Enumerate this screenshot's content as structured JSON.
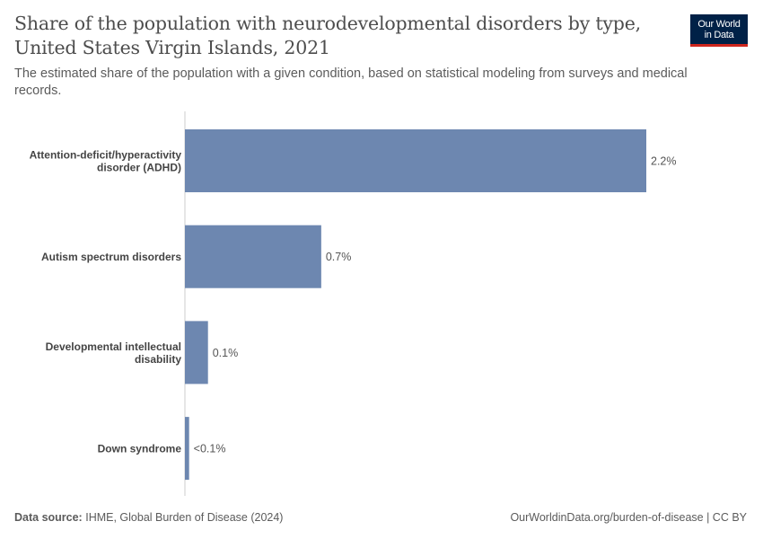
{
  "header": {
    "title": "Share of the population with neurodevelopmental disorders by type, United States Virgin Islands, 2021",
    "subtitle": "The estimated share of the population with a given condition, based on statistical modeling from surveys and medical records."
  },
  "logo": {
    "line1": "Our World",
    "line2": "in Data",
    "bg_color": "#002147",
    "accent_color": "#ce261e"
  },
  "chart_data": {
    "type": "bar",
    "orientation": "horizontal",
    "categories": [
      [
        "Attention-deficit/hyperactivity",
        "disorder (ADHD)"
      ],
      [
        "Autism spectrum disorders"
      ],
      [
        "Developmental intellectual",
        "disability"
      ],
      [
        "Down syndrome"
      ]
    ],
    "values": [
      2.2,
      0.65,
      0.11,
      0.02
    ],
    "value_labels": [
      "2.2%",
      "0.7%",
      "0.1%",
      "<0.1%"
    ],
    "unit": "%",
    "bar_color": "#6d87b0",
    "grid": false
  },
  "footer": {
    "source_label": "Data source:",
    "source_text": "IHME, Global Burden of Disease (2024)",
    "url_text": "OurWorldinData.org/burden-of-disease | CC BY"
  }
}
